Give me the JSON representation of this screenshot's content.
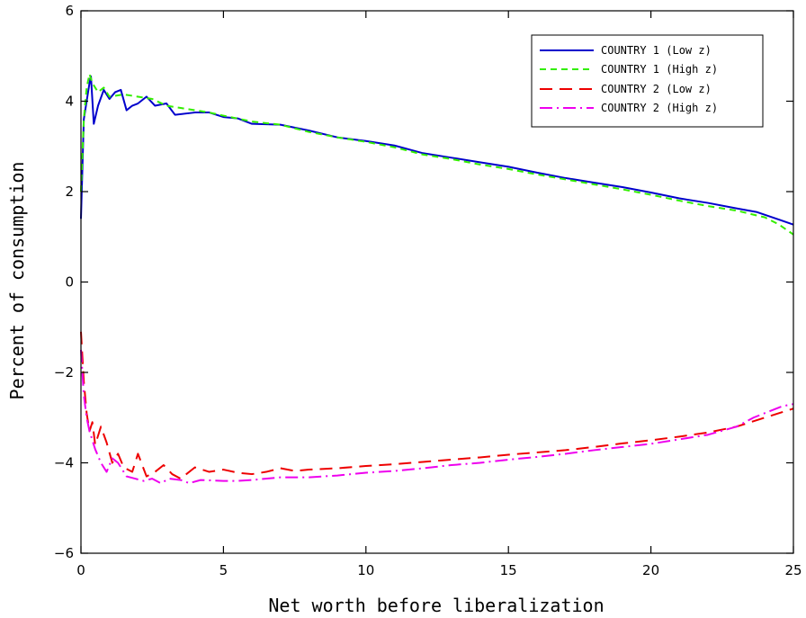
{
  "chart_data": {
    "type": "line",
    "title": "",
    "xlabel": "Net worth before liberalization",
    "ylabel": "Percent of consumption",
    "xlim": [
      0,
      25
    ],
    "ylim": [
      -6,
      6
    ],
    "xticks": [
      0,
      5,
      10,
      15,
      20,
      25
    ],
    "yticks": [
      -6,
      -4,
      -2,
      0,
      2,
      4,
      6
    ],
    "grid": false,
    "legend_position": "top-right",
    "series": [
      {
        "name": "COUNTRY 1 (Low z)",
        "color": "#0000cc",
        "style": "solid",
        "points": [
          [
            0,
            1.4
          ],
          [
            0.1,
            3.6
          ],
          [
            0.2,
            4.0
          ],
          [
            0.3,
            4.4
          ],
          [
            0.35,
            4.55
          ],
          [
            0.45,
            3.5
          ],
          [
            0.6,
            3.9
          ],
          [
            0.8,
            4.25
          ],
          [
            1.0,
            4.05
          ],
          [
            1.2,
            4.2
          ],
          [
            1.4,
            4.25
          ],
          [
            1.6,
            3.8
          ],
          [
            1.8,
            3.9
          ],
          [
            2.0,
            3.95
          ],
          [
            2.3,
            4.1
          ],
          [
            2.6,
            3.9
          ],
          [
            3.0,
            3.95
          ],
          [
            3.3,
            3.7
          ],
          [
            4.0,
            3.75
          ],
          [
            4.5,
            3.75
          ],
          [
            5.0,
            3.65
          ],
          [
            5.5,
            3.62
          ],
          [
            6.0,
            3.5
          ],
          [
            7.0,
            3.48
          ],
          [
            8.0,
            3.35
          ],
          [
            9.0,
            3.2
          ],
          [
            10.0,
            3.12
          ],
          [
            11.0,
            3.02
          ],
          [
            12.0,
            2.85
          ],
          [
            13.0,
            2.75
          ],
          [
            14.0,
            2.65
          ],
          [
            15.0,
            2.55
          ],
          [
            16.0,
            2.42
          ],
          [
            17.0,
            2.3
          ],
          [
            18.0,
            2.2
          ],
          [
            19.0,
            2.1
          ],
          [
            20.0,
            1.98
          ],
          [
            21.0,
            1.85
          ],
          [
            22.0,
            1.75
          ],
          [
            23.0,
            1.63
          ],
          [
            23.7,
            1.55
          ],
          [
            24.5,
            1.38
          ],
          [
            25.0,
            1.27
          ]
        ]
      },
      {
        "name": "COUNTRY 1 (High z)",
        "color": "#33ee00",
        "style": "dashed",
        "points": [
          [
            0,
            2.0
          ],
          [
            0.1,
            3.6
          ],
          [
            0.2,
            4.3
          ],
          [
            0.3,
            4.6
          ],
          [
            0.4,
            4.4
          ],
          [
            0.6,
            4.2
          ],
          [
            0.8,
            4.3
          ],
          [
            1.0,
            4.1
          ],
          [
            1.5,
            4.15
          ],
          [
            2.0,
            4.1
          ],
          [
            2.5,
            4.05
          ],
          [
            3.0,
            3.9
          ],
          [
            3.5,
            3.85
          ],
          [
            4.5,
            3.75
          ],
          [
            5.0,
            3.68
          ],
          [
            6.0,
            3.55
          ],
          [
            7.0,
            3.48
          ],
          [
            8.0,
            3.32
          ],
          [
            9.0,
            3.2
          ],
          [
            10.0,
            3.1
          ],
          [
            11.0,
            2.98
          ],
          [
            12.0,
            2.82
          ],
          [
            13.0,
            2.72
          ],
          [
            14.0,
            2.6
          ],
          [
            15.0,
            2.5
          ],
          [
            16.0,
            2.38
          ],
          [
            17.0,
            2.27
          ],
          [
            18.0,
            2.16
          ],
          [
            19.0,
            2.05
          ],
          [
            20.0,
            1.93
          ],
          [
            21.0,
            1.8
          ],
          [
            22.0,
            1.68
          ],
          [
            23.0,
            1.58
          ],
          [
            24.0,
            1.43
          ],
          [
            24.5,
            1.27
          ],
          [
            25.0,
            1.05
          ]
        ]
      },
      {
        "name": "COUNTRY 2 (Low z)",
        "color": "#ee0000",
        "style": "longdash",
        "points": [
          [
            0,
            -1.1
          ],
          [
            0.1,
            -2.2
          ],
          [
            0.2,
            -2.9
          ],
          [
            0.3,
            -3.3
          ],
          [
            0.4,
            -3.1
          ],
          [
            0.5,
            -3.6
          ],
          [
            0.7,
            -3.2
          ],
          [
            0.9,
            -3.55
          ],
          [
            1.1,
            -4.0
          ],
          [
            1.3,
            -3.8
          ],
          [
            1.5,
            -4.1
          ],
          [
            1.8,
            -4.2
          ],
          [
            2.0,
            -3.8
          ],
          [
            2.3,
            -4.3
          ],
          [
            2.6,
            -4.2
          ],
          [
            2.9,
            -4.05
          ],
          [
            3.2,
            -4.25
          ],
          [
            3.5,
            -4.35
          ],
          [
            4.0,
            -4.1
          ],
          [
            4.5,
            -4.2
          ],
          [
            5.0,
            -4.15
          ],
          [
            5.5,
            -4.22
          ],
          [
            6.0,
            -4.25
          ],
          [
            6.5,
            -4.2
          ],
          [
            7.0,
            -4.12
          ],
          [
            7.5,
            -4.18
          ],
          [
            8.0,
            -4.15
          ],
          [
            9.0,
            -4.12
          ],
          [
            10.0,
            -4.07
          ],
          [
            11.0,
            -4.03
          ],
          [
            12.0,
            -3.98
          ],
          [
            13.0,
            -3.93
          ],
          [
            14.0,
            -3.88
          ],
          [
            15.0,
            -3.82
          ],
          [
            16.0,
            -3.77
          ],
          [
            17.0,
            -3.72
          ],
          [
            18.0,
            -3.65
          ],
          [
            19.0,
            -3.57
          ],
          [
            20.0,
            -3.5
          ],
          [
            21.0,
            -3.42
          ],
          [
            22.0,
            -3.33
          ],
          [
            23.0,
            -3.2
          ],
          [
            24.0,
            -3.0
          ],
          [
            25.0,
            -2.8
          ]
        ]
      },
      {
        "name": "COUNTRY 2 (High z)",
        "color": "#ee00ee",
        "style": "dashdot",
        "points": [
          [
            0,
            -1.5
          ],
          [
            0.1,
            -2.5
          ],
          [
            0.2,
            -3.0
          ],
          [
            0.3,
            -3.3
          ],
          [
            0.4,
            -3.5
          ],
          [
            0.5,
            -3.7
          ],
          [
            0.7,
            -4.0
          ],
          [
            0.9,
            -4.2
          ],
          [
            1.1,
            -3.9
          ],
          [
            1.3,
            -4.0
          ],
          [
            1.6,
            -4.3
          ],
          [
            1.9,
            -4.35
          ],
          [
            2.2,
            -4.4
          ],
          [
            2.5,
            -4.35
          ],
          [
            2.8,
            -4.45
          ],
          [
            3.1,
            -4.35
          ],
          [
            3.5,
            -4.38
          ],
          [
            3.8,
            -4.45
          ],
          [
            4.2,
            -4.38
          ],
          [
            5.0,
            -4.4
          ],
          [
            5.5,
            -4.4
          ],
          [
            6.0,
            -4.38
          ],
          [
            7.0,
            -4.32
          ],
          [
            8.0,
            -4.32
          ],
          [
            9.0,
            -4.28
          ],
          [
            10.0,
            -4.22
          ],
          [
            11.0,
            -4.18
          ],
          [
            12.0,
            -4.12
          ],
          [
            13.0,
            -4.05
          ],
          [
            14.0,
            -4.0
          ],
          [
            15.0,
            -3.93
          ],
          [
            16.0,
            -3.87
          ],
          [
            17.0,
            -3.8
          ],
          [
            18.0,
            -3.72
          ],
          [
            19.0,
            -3.65
          ],
          [
            20.0,
            -3.58
          ],
          [
            21.0,
            -3.48
          ],
          [
            22.0,
            -3.38
          ],
          [
            23.0,
            -3.2
          ],
          [
            23.6,
            -3.0
          ],
          [
            24.0,
            -2.9
          ],
          [
            24.6,
            -2.75
          ],
          [
            25.0,
            -2.7
          ]
        ]
      }
    ]
  }
}
